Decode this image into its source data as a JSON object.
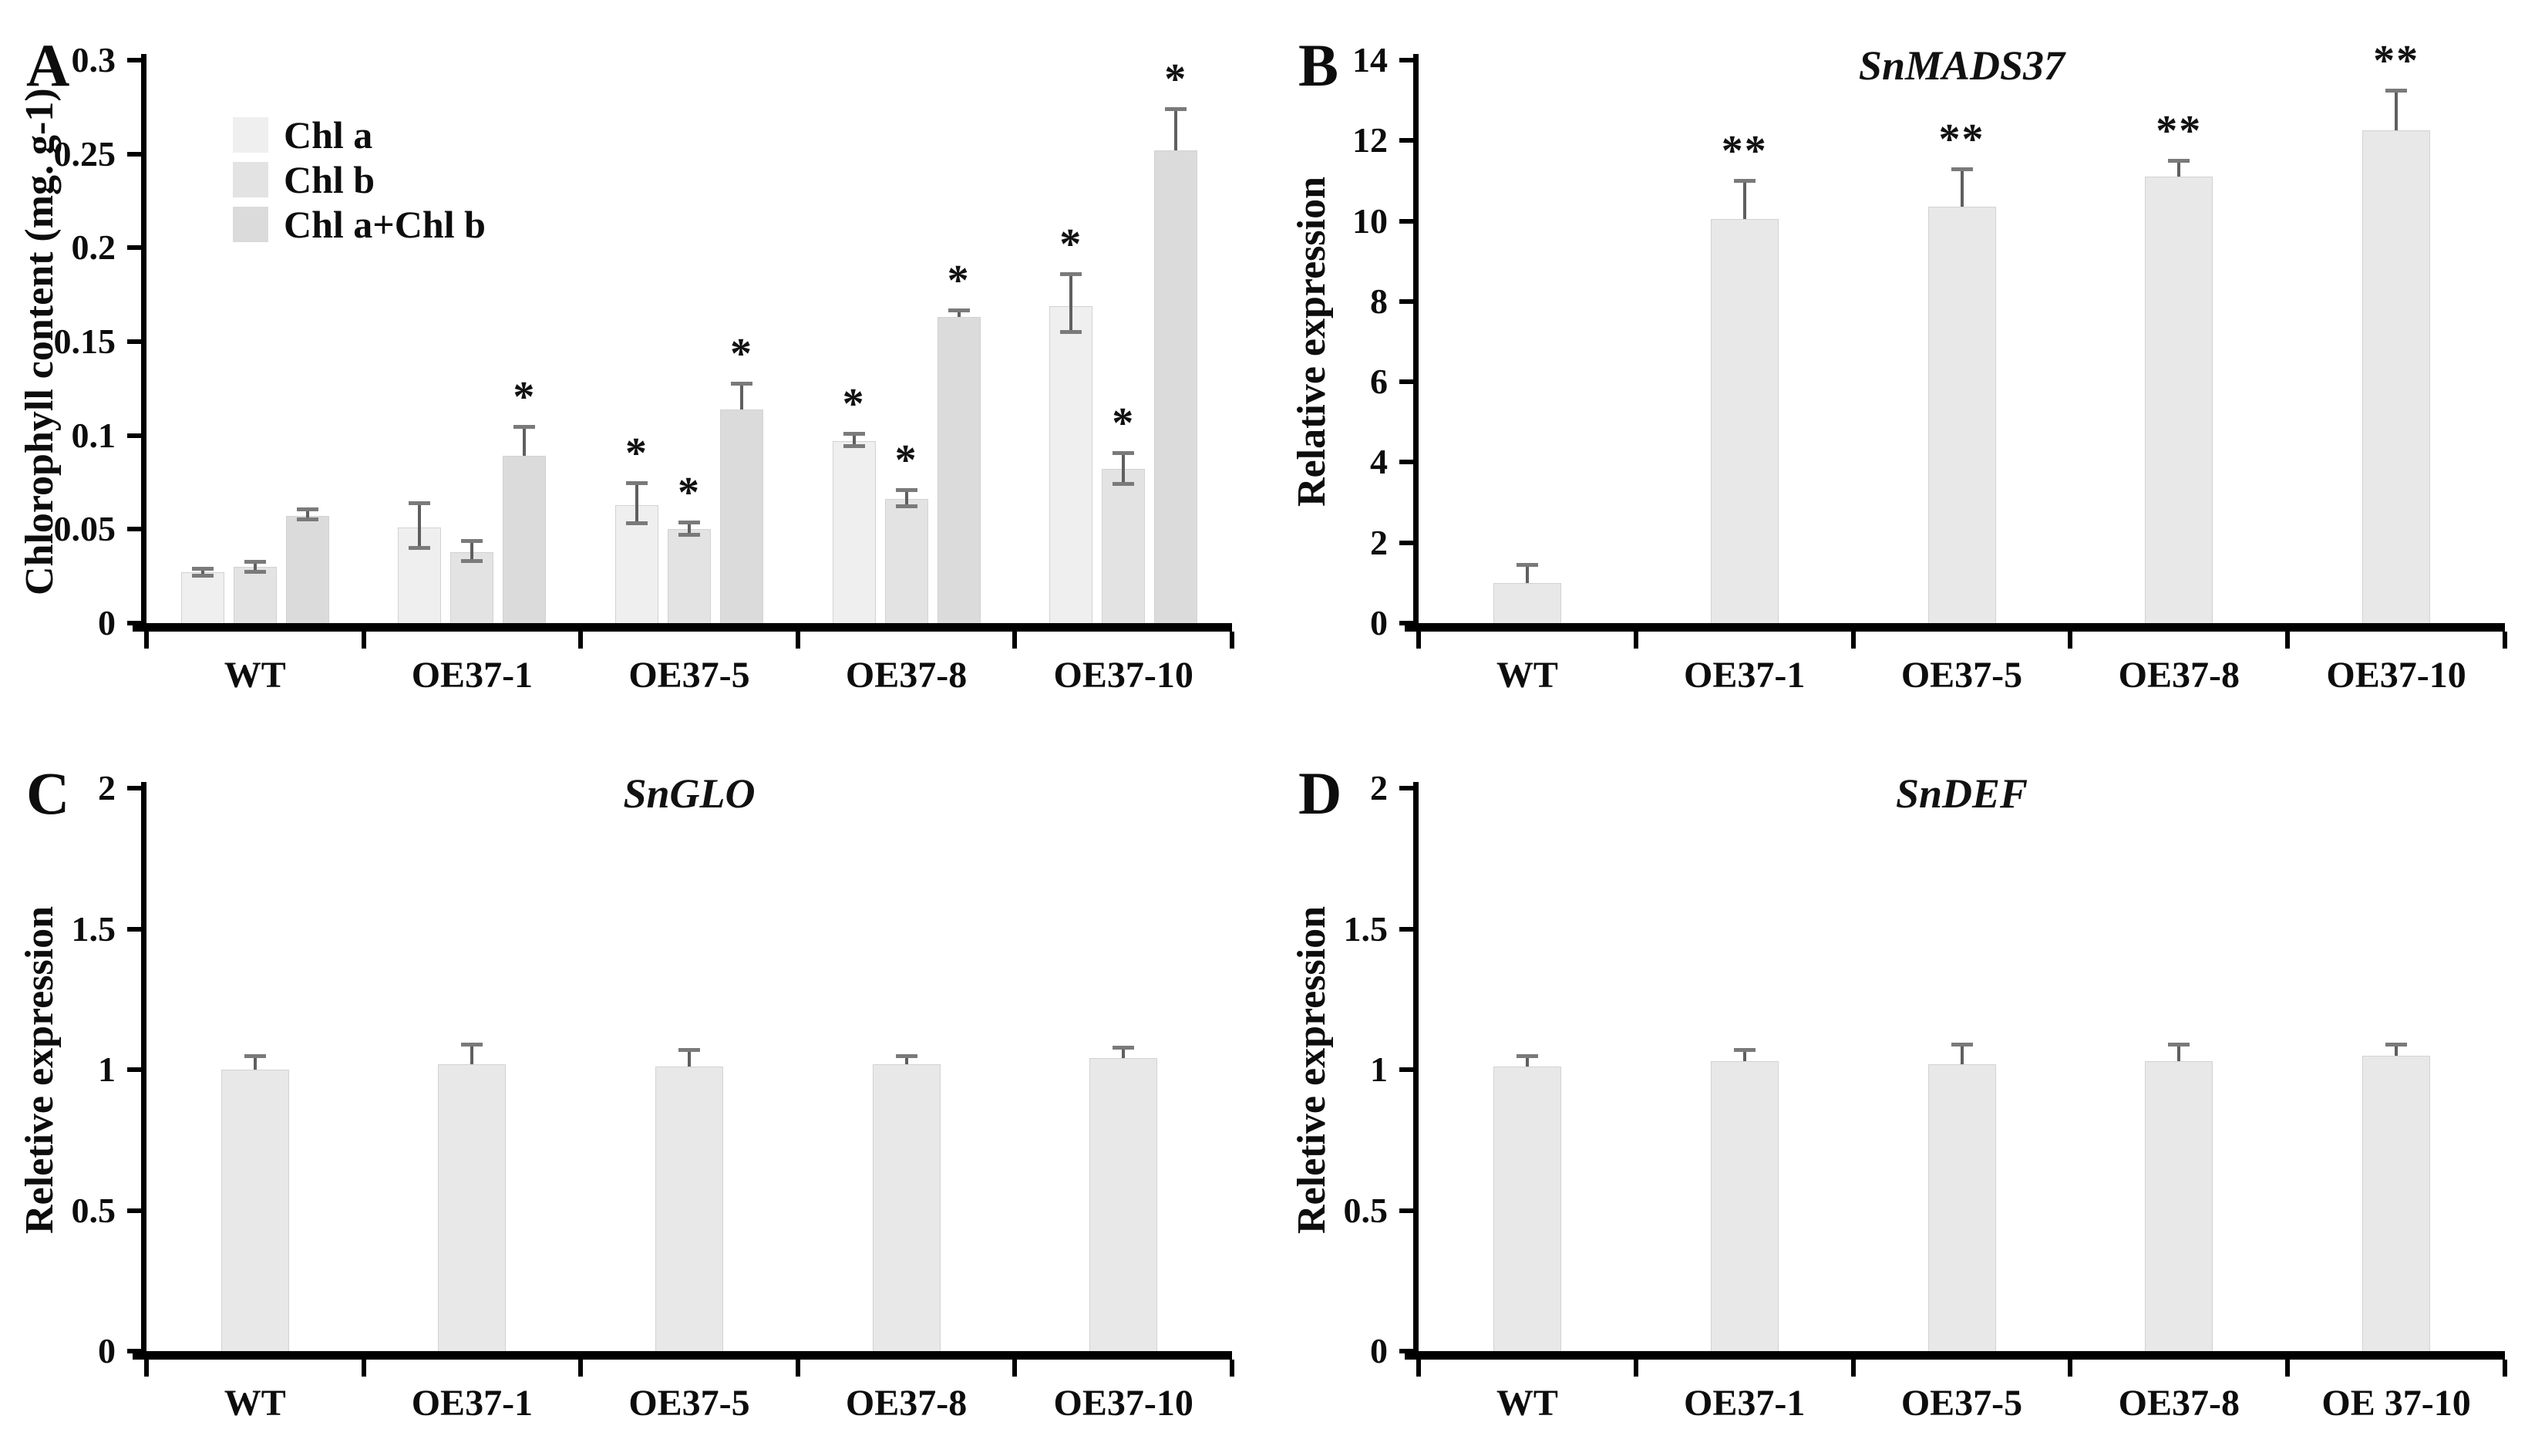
{
  "figure": {
    "background": "#ffffff"
  },
  "chart_data": [
    {
      "type": "bar",
      "letter": "A",
      "title": "",
      "ylabel": "Chlorophyll content (mg. g-1)",
      "ylim": [
        0,
        0.3
      ],
      "yticks": [
        "0.3",
        "0.25",
        "0.2",
        "0.15",
        "0.1",
        "0.05",
        "0"
      ],
      "grid": false,
      "legend_position": "upper-left-inside",
      "categories": [
        "WT",
        "OE37-1",
        "OE37-5",
        "OE37-8",
        "OE37-10"
      ],
      "series": [
        {
          "name": "Chl a",
          "color": "#efefef",
          "values": [
            0.027,
            0.051,
            0.063,
            0.097,
            0.169
          ],
          "err_up": [
            0.002,
            0.013,
            0.012,
            0.004,
            0.017
          ],
          "err_down": [
            0.002,
            0.011,
            0.01,
            0.003,
            0.014
          ],
          "sig": [
            "",
            "",
            "*",
            "*",
            "*"
          ]
        },
        {
          "name": "Chl b",
          "color": "#e3e3e3",
          "values": [
            0.03,
            0.038,
            0.05,
            0.066,
            0.082
          ],
          "err_up": [
            0.003,
            0.006,
            0.004,
            0.005,
            0.009
          ],
          "err_down": [
            0.003,
            0.005,
            0.003,
            0.004,
            0.008
          ],
          "sig": [
            "",
            "",
            "*",
            "*",
            "*"
          ]
        },
        {
          "name": "Chl a+Chl b",
          "color": "#dbdbdb",
          "values": [
            0.057,
            0.089,
            0.114,
            0.163,
            0.252
          ],
          "err_up": [
            0.004,
            0.016,
            0.014,
            0.004,
            0.022
          ],
          "err_down": [
            0.002,
            0.0,
            0.0,
            0.0,
            0.0
          ],
          "sig": [
            "",
            "*",
            "*",
            "*",
            "*"
          ]
        }
      ]
    },
    {
      "type": "bar",
      "letter": "B",
      "title": "SnMADS37",
      "ylabel": "Relative expression",
      "ylim": [
        0,
        14
      ],
      "yticks": [
        "14",
        "12",
        "10",
        "8",
        "6",
        "4",
        "2",
        "0"
      ],
      "grid": false,
      "bar_color": "#e8e8e8",
      "categories": [
        "WT",
        "OE37-1",
        "OE37-5",
        "OE37-8",
        "OE37-10"
      ],
      "values": [
        1.0,
        10.05,
        10.35,
        11.1,
        12.25
      ],
      "err_up": [
        0.45,
        0.95,
        0.95,
        0.4,
        1.0
      ],
      "sig": [
        "",
        "**",
        "**",
        "**",
        "**"
      ]
    },
    {
      "type": "bar",
      "letter": "C",
      "title": "SnGLO",
      "ylabel": "Reletive expression",
      "ylim": [
        0,
        2
      ],
      "yticks": [
        "2",
        "1.5",
        "1",
        "0.5",
        "0"
      ],
      "grid": false,
      "bar_color": "#e8e8e8",
      "categories": [
        "WT",
        "OE37-1",
        "OE37-5",
        "OE37-8",
        "OE37-10"
      ],
      "values": [
        1.0,
        1.02,
        1.01,
        1.02,
        1.04
      ],
      "err_up": [
        0.05,
        0.07,
        0.06,
        0.03,
        0.04
      ],
      "sig": [
        "",
        "",
        "",
        "",
        ""
      ]
    },
    {
      "type": "bar",
      "letter": "D",
      "title": "SnDEF",
      "ylabel": "Reletive expression",
      "ylim": [
        0,
        2
      ],
      "yticks": [
        "2",
        "1.5",
        "1",
        "0.5",
        "0"
      ],
      "grid": false,
      "bar_color": "#e8e8e8",
      "categories": [
        "WT",
        "OE37-1",
        "OE37-5",
        "OE37-8",
        "OE 37-10"
      ],
      "values": [
        1.01,
        1.03,
        1.02,
        1.03,
        1.05
      ],
      "err_up": [
        0.04,
        0.04,
        0.07,
        0.06,
        0.04
      ],
      "sig": [
        "",
        "",
        "",
        "",
        ""
      ]
    }
  ]
}
